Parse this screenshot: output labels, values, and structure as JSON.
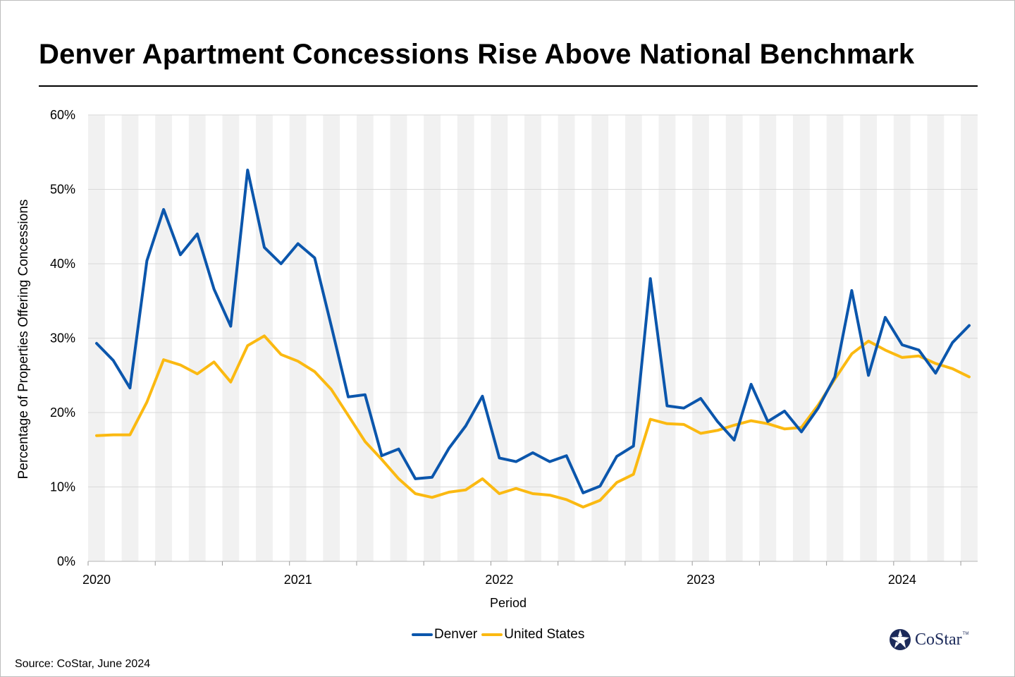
{
  "title": "Denver Apartment Concessions Rise Above National Benchmark",
  "source": "Source: CoStar, June 2024",
  "logo": {
    "name": "CoStar",
    "tm": "TM"
  },
  "colors": {
    "denver": "#0b56ac",
    "us": "#fbb911",
    "band": "#f1f1f1",
    "grid": "#d9d9d9"
  },
  "chart_data": {
    "type": "line",
    "title": "Denver Apartment Concessions Rise Above National Benchmark",
    "xlabel": "Period",
    "ylabel": "Percentage of Properties Offering Concessions",
    "ylim": [
      0,
      0.6
    ],
    "yticks": [
      0,
      0.1,
      0.2,
      0.3,
      0.4,
      0.5,
      0.6
    ],
    "ytick_labels": [
      "0%",
      "10%",
      "20%",
      "30%",
      "40%",
      "50%",
      "60%"
    ],
    "xlim": [
      2020.0,
      2024.417
    ],
    "xticks": [
      2020,
      2021,
      2022,
      2023,
      2024
    ],
    "xtick_labels": [
      "2020",
      "2021",
      "2022",
      "2023",
      "2024"
    ],
    "grid": true,
    "legend": "bottom-center",
    "x": [
      2020.042,
      2020.125,
      2020.208,
      2020.292,
      2020.375,
      2020.458,
      2020.542,
      2020.625,
      2020.708,
      2020.792,
      2020.875,
      2020.958,
      2021.042,
      2021.125,
      2021.208,
      2021.292,
      2021.375,
      2021.458,
      2021.542,
      2021.625,
      2021.708,
      2021.792,
      2021.875,
      2021.958,
      2022.042,
      2022.125,
      2022.208,
      2022.292,
      2022.375,
      2022.458,
      2022.542,
      2022.625,
      2022.708,
      2022.792,
      2022.875,
      2022.958,
      2023.042,
      2023.125,
      2023.208,
      2023.292,
      2023.375,
      2023.458,
      2023.542,
      2023.625,
      2023.708,
      2023.792,
      2023.875,
      2023.958,
      2024.042,
      2024.125,
      2024.208,
      2024.292,
      2024.375
    ],
    "series": [
      {
        "name": "Denver",
        "values": [
          0.293,
          0.27,
          0.233,
          0.404,
          0.473,
          0.412,
          0.44,
          0.366,
          0.316,
          0.526,
          0.422,
          0.4,
          0.427,
          0.408,
          0.316,
          0.221,
          0.224,
          0.142,
          0.151,
          0.111,
          0.113,
          0.152,
          0.182,
          0.222,
          0.139,
          0.134,
          0.146,
          0.134,
          0.142,
          0.092,
          0.101,
          0.141,
          0.155,
          0.38,
          0.209,
          0.206,
          0.219,
          0.188,
          0.163,
          0.238,
          0.188,
          0.202,
          0.174,
          0.206,
          0.248,
          0.364,
          0.25,
          0.328,
          0.291,
          0.284,
          0.253,
          0.294,
          0.317
        ]
      },
      {
        "name": "United States",
        "values": [
          0.169,
          0.17,
          0.17,
          0.214,
          0.271,
          0.264,
          0.252,
          0.268,
          0.241,
          0.29,
          0.303,
          0.278,
          0.269,
          0.255,
          0.231,
          0.196,
          0.161,
          0.137,
          0.111,
          0.091,
          0.086,
          0.093,
          0.096,
          0.111,
          0.091,
          0.098,
          0.091,
          0.089,
          0.083,
          0.073,
          0.082,
          0.106,
          0.117,
          0.191,
          0.185,
          0.184,
          0.172,
          0.176,
          0.183,
          0.189,
          0.185,
          0.178,
          0.18,
          0.21,
          0.245,
          0.279,
          0.296,
          0.284,
          0.274,
          0.276,
          0.266,
          0.259,
          0.248
        ]
      }
    ]
  }
}
